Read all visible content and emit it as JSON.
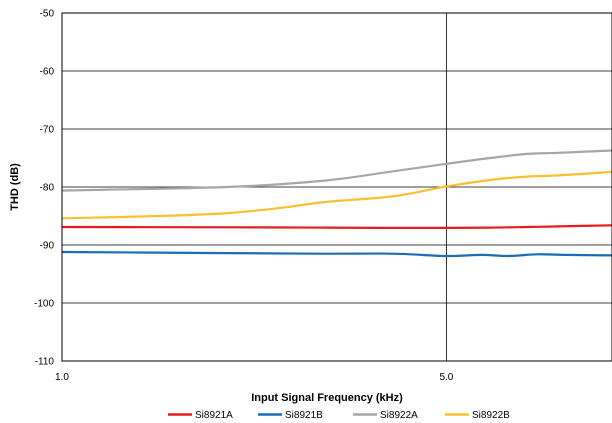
{
  "chart_data": {
    "type": "line",
    "title": "",
    "xlabel": "Input Signal Frequency (kHz)",
    "ylabel": "THD (dB)",
    "x_scale": "log",
    "xlim": [
      1.0,
      10.0
    ],
    "ylim": [
      -110,
      -50
    ],
    "x_ticks": [
      1.0,
      5.0
    ],
    "x_tick_labels": [
      "1.0",
      "5.0"
    ],
    "y_ticks": [
      -50,
      -60,
      -70,
      -80,
      -90,
      -100,
      -110
    ],
    "y_tick_labels": [
      "-50",
      "-60",
      "-70",
      "-80",
      "-90",
      "-100",
      "-110"
    ],
    "grid": true,
    "legend_position": "bottom",
    "series": [
      {
        "name": "Si8921A",
        "color": "#e8191f",
        "x": [
          1.0,
          2.0,
          3.0,
          4.0,
          5.0,
          6.0,
          7.0,
          8.0,
          10.0
        ],
        "y": [
          -86.9,
          -86.95,
          -87.0,
          -87.05,
          -87.05,
          -87.0,
          -86.9,
          -86.8,
          -86.6
        ]
      },
      {
        "name": "Si8921B",
        "color": "#1c6db5",
        "x": [
          1.0,
          2.0,
          3.0,
          4.0,
          5.0,
          5.8,
          6.5,
          7.3,
          8.2,
          10.0
        ],
        "y": [
          -91.2,
          -91.4,
          -91.5,
          -91.5,
          -91.9,
          -91.7,
          -91.9,
          -91.6,
          -91.7,
          -91.8
        ]
      },
      {
        "name": "Si8922A",
        "color": "#a6a6a6",
        "x": [
          1.0,
          2.0,
          3.0,
          4.0,
          5.0,
          6.0,
          7.0,
          8.0,
          10.0
        ],
        "y": [
          -80.6,
          -80.0,
          -78.9,
          -77.3,
          -76.0,
          -75.0,
          -74.3,
          -74.1,
          -73.7
        ]
      },
      {
        "name": "Si8922B",
        "color": "#fbc02d",
        "x": [
          1.0,
          1.5,
          2.0,
          2.5,
          3.0,
          4.0,
          5.0,
          6.0,
          7.0,
          8.0,
          10.0
        ],
        "y": [
          -85.4,
          -85.0,
          -84.5,
          -83.6,
          -82.6,
          -81.6,
          -79.9,
          -78.8,
          -78.2,
          -78.0,
          -77.4
        ]
      }
    ]
  }
}
